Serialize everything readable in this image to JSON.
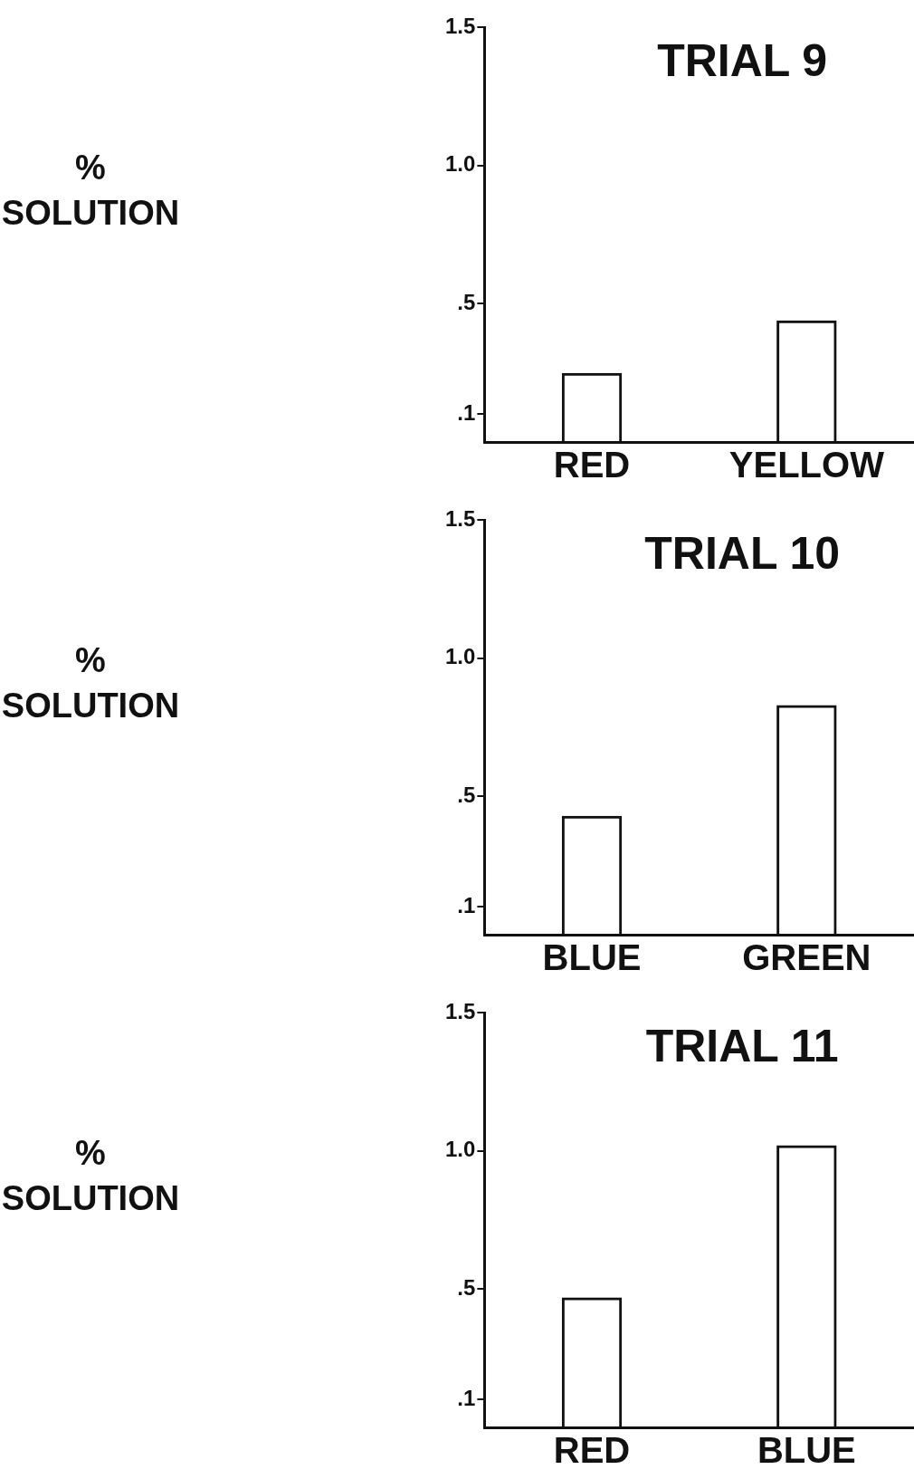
{
  "chart_data": [
    {
      "type": "bar",
      "title": "TRIAL 9",
      "ylabel": "% SOLUTION",
      "categories": [
        "RED",
        "YELLOW"
      ],
      "series": [
        {
          "color": "#111111",
          "values": [
            0.25,
            0.44
          ]
        }
      ],
      "ylim": [
        0,
        1.5
      ],
      "yticks": [
        {
          "value": 0.1,
          "label": ".1"
        },
        {
          "value": 0.5,
          "label": ".5"
        },
        {
          "value": 1.0,
          "label": "1.0"
        },
        {
          "value": 1.5,
          "label": "1.5"
        }
      ],
      "grid": false,
      "legend": false
    },
    {
      "type": "bar",
      "title": "TRIAL 10",
      "ylabel": "% SOLUTION",
      "categories": [
        "BLUE",
        "GREEN"
      ],
      "series": [
        {
          "color": "#111111",
          "values": [
            0.43,
            0.83
          ]
        }
      ],
      "ylim": [
        0,
        1.5
      ],
      "yticks": [
        {
          "value": 0.1,
          "label": ".1"
        },
        {
          "value": 0.5,
          "label": ".5"
        },
        {
          "value": 1.0,
          "label": "1.0"
        },
        {
          "value": 1.5,
          "label": "1.5"
        }
      ],
      "grid": false,
      "legend": false
    },
    {
      "type": "bar",
      "title": "TRIAL 11",
      "ylabel": "% SOLUTION",
      "categories": [
        "RED",
        "BLUE"
      ],
      "series": [
        {
          "color": "#111111",
          "values": [
            0.47,
            1.02
          ]
        }
      ],
      "ylim": [
        0,
        1.5
      ],
      "yticks": [
        {
          "value": 0.1,
          "label": ".1"
        },
        {
          "value": 0.5,
          "label": ".5"
        },
        {
          "value": 1.0,
          "label": "1.0"
        },
        {
          "value": 1.5,
          "label": "1.5"
        }
      ],
      "grid": false,
      "legend": false
    }
  ]
}
